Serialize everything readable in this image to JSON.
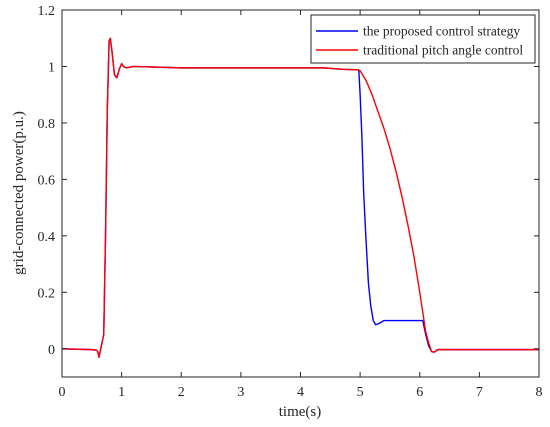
{
  "chart_data": {
    "type": "line",
    "xlabel": "time(s)",
    "ylabel": "grid-connected power(p.u.)",
    "xlim": [
      0,
      8
    ],
    "ylim": [
      -0.1,
      1.2
    ],
    "x_ticks": [
      0,
      1,
      2,
      3,
      4,
      5,
      6,
      7,
      8
    ],
    "y_ticks": [
      0,
      0.2,
      0.4,
      0.6,
      0.8,
      1,
      1.2
    ],
    "x_tick_labels": [
      "0",
      "1",
      "2",
      "3",
      "4",
      "5",
      "6",
      "7",
      "8"
    ],
    "y_tick_labels": [
      "0",
      "0.2",
      "0.4",
      "0.6",
      "0.8",
      "1",
      "1.2"
    ],
    "grid": false,
    "legend_position": "top-right",
    "series": [
      {
        "name": "the proposed control strategy",
        "color": "#0000ff",
        "points": [
          [
            0,
            0
          ],
          [
            0.5,
            -0.003
          ],
          [
            0.58,
            -0.005
          ],
          [
            0.6,
            -0.01
          ],
          [
            0.62,
            -0.03
          ],
          [
            0.64,
            -0.01
          ],
          [
            0.66,
            0.01
          ],
          [
            0.7,
            0.05
          ],
          [
            0.73,
            0.4
          ],
          [
            0.76,
            0.85
          ],
          [
            0.79,
            1.09
          ],
          [
            0.81,
            1.1
          ],
          [
            0.84,
            1.05
          ],
          [
            0.88,
            0.97
          ],
          [
            0.92,
            0.96
          ],
          [
            0.96,
            0.99
          ],
          [
            1.0,
            1.01
          ],
          [
            1.03,
            1.0
          ],
          [
            1.08,
            0.995
          ],
          [
            1.2,
            1.0
          ],
          [
            2.0,
            0.995
          ],
          [
            3.0,
            0.995
          ],
          [
            4.0,
            0.995
          ],
          [
            4.4,
            0.995
          ],
          [
            4.7,
            0.99
          ],
          [
            4.97,
            0.988
          ],
          [
            4.98,
            0.98
          ],
          [
            5.0,
            0.9
          ],
          [
            5.03,
            0.75
          ],
          [
            5.06,
            0.55
          ],
          [
            5.1,
            0.38
          ],
          [
            5.14,
            0.23
          ],
          [
            5.18,
            0.15
          ],
          [
            5.22,
            0.1
          ],
          [
            5.26,
            0.085
          ],
          [
            5.32,
            0.09
          ],
          [
            5.4,
            0.1
          ],
          [
            5.6,
            0.1
          ],
          [
            6.0,
            0.1
          ],
          [
            6.05,
            0.1
          ],
          [
            6.1,
            0.05
          ],
          [
            6.15,
            0.01
          ],
          [
            6.2,
            -0.01
          ],
          [
            6.24,
            -0.012
          ],
          [
            6.3,
            -0.003
          ],
          [
            6.5,
            -0.003
          ],
          [
            8.0,
            -0.003
          ]
        ]
      },
      {
        "name": "traditional pitch angle control",
        "color": "#ff0000",
        "points": [
          [
            0,
            0
          ],
          [
            0.5,
            -0.003
          ],
          [
            0.58,
            -0.005
          ],
          [
            0.6,
            -0.01
          ],
          [
            0.62,
            -0.03
          ],
          [
            0.64,
            -0.01
          ],
          [
            0.66,
            0.01
          ],
          [
            0.7,
            0.05
          ],
          [
            0.73,
            0.4
          ],
          [
            0.76,
            0.85
          ],
          [
            0.79,
            1.09
          ],
          [
            0.81,
            1.1
          ],
          [
            0.84,
            1.05
          ],
          [
            0.88,
            0.97
          ],
          [
            0.92,
            0.96
          ],
          [
            0.96,
            0.99
          ],
          [
            1.0,
            1.01
          ],
          [
            1.03,
            1.0
          ],
          [
            1.08,
            0.995
          ],
          [
            1.2,
            1.0
          ],
          [
            2.0,
            0.995
          ],
          [
            3.0,
            0.995
          ],
          [
            4.0,
            0.995
          ],
          [
            4.4,
            0.995
          ],
          [
            4.7,
            0.99
          ],
          [
            4.97,
            0.988
          ],
          [
            5.0,
            0.985
          ],
          [
            5.1,
            0.95
          ],
          [
            5.2,
            0.9
          ],
          [
            5.3,
            0.84
          ],
          [
            5.4,
            0.78
          ],
          [
            5.5,
            0.71
          ],
          [
            5.6,
            0.63
          ],
          [
            5.7,
            0.54
          ],
          [
            5.8,
            0.44
          ],
          [
            5.9,
            0.33
          ],
          [
            6.0,
            0.2
          ],
          [
            6.05,
            0.13
          ],
          [
            6.1,
            0.06
          ],
          [
            6.15,
            0.02
          ],
          [
            6.2,
            -0.01
          ],
          [
            6.24,
            -0.012
          ],
          [
            6.3,
            -0.003
          ],
          [
            6.5,
            -0.003
          ],
          [
            8.0,
            -0.003
          ]
        ]
      }
    ]
  }
}
